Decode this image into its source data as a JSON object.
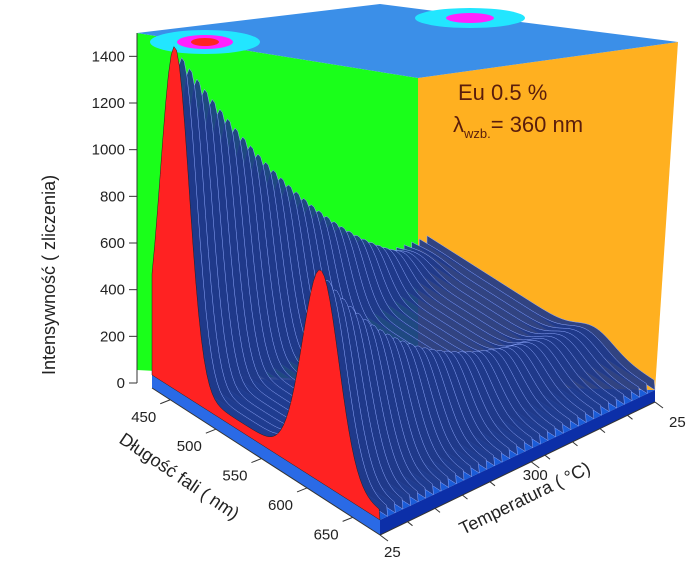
{
  "chart_data": {
    "type": "surface-3d",
    "annotation": {
      "sample": "Eu 0.5 %",
      "symbol": "λ",
      "subscript": "wzb.",
      "value": "= 360 nm"
    },
    "z_axis": {
      "label": "Intensywność  (  zliczenia)",
      "ticks": [
        0,
        200,
        400,
        600,
        800,
        1000,
        1200,
        1400
      ],
      "range": [
        0,
        1500
      ]
    },
    "wavelength_axis": {
      "label": "Długość fali  (  nm)",
      "ticks": [
        450,
        500,
        550,
        600,
        650
      ],
      "range": [
        430,
        680
      ]
    },
    "temperature_axis": {
      "label": "Temperatura  (  °C)",
      "ticks": [
        25,
        300,
        25
      ],
      "range": [
        25,
        400
      ]
    },
    "colors": {
      "back_wall": "#1aff1a",
      "side_wall": "#ffb020",
      "floor": "#1a5cd8",
      "surface": "#1f3a8a",
      "bands": [
        "#2f9bff",
        "#22e6ff",
        "#ff22ff",
        "#22dd22",
        "#ffff22",
        "#ff9922",
        "#ff2222"
      ]
    },
    "series": [
      {
        "peak_wavelength": 455,
        "temperature": 25,
        "max_intensity": 1430
      },
      {
        "peak_wavelength": 615,
        "temperature": 25,
        "max_intensity": 870
      }
    ]
  }
}
